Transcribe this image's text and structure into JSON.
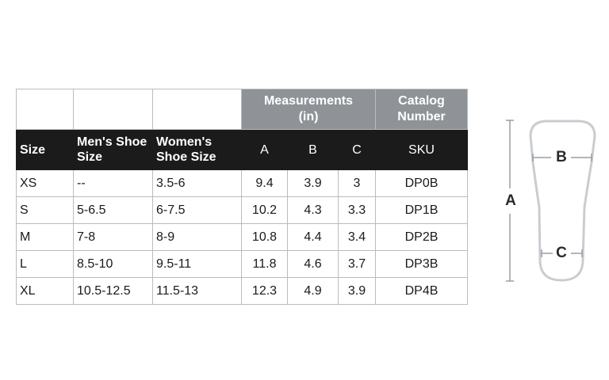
{
  "table": {
    "group_headers": [
      "Measurements (in)",
      "Catalog Number"
    ],
    "headers": [
      "Size",
      "Men's Shoe Size",
      "Women's Shoe Size",
      "A",
      "B",
      "C",
      "SKU"
    ],
    "rows": [
      [
        "XS",
        "--",
        "3.5-6",
        9.4,
        3.9,
        3,
        "DP0B"
      ],
      [
        "S",
        "5-6.5",
        "6-7.5",
        10.2,
        4.3,
        3.3,
        "DP1B"
      ],
      [
        "M",
        "7-8",
        "8-9",
        10.8,
        4.4,
        3.4,
        "DP2B"
      ],
      [
        "L",
        "8.5-10",
        "9.5-11",
        11.8,
        4.6,
        3.7,
        "DP3B"
      ],
      [
        "XL",
        "10.5-12.5",
        "11.5-13",
        12.3,
        4.9,
        3.9,
        "DP4B"
      ]
    ]
  },
  "diagram": {
    "labels": [
      "A",
      "B",
      "C"
    ]
  }
}
